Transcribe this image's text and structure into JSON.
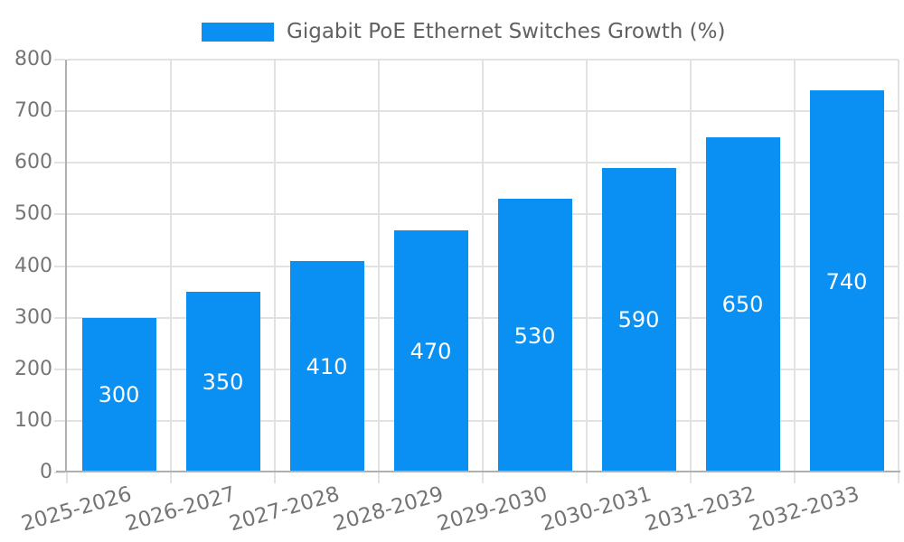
{
  "legend": {
    "label": "Gigabit PoE Ethernet Switches Growth (%)"
  },
  "chart_data": {
    "type": "bar",
    "title": "Gigabit PoE Ethernet Switches Growth (%)",
    "categories": [
      "2025-2026",
      "2026-2027",
      "2027-2028",
      "2028-2029",
      "2029-2030",
      "2030-2031",
      "2031-2032",
      "2032-2033"
    ],
    "values": [
      300,
      350,
      410,
      470,
      530,
      590,
      650,
      740
    ],
    "value_labels": [
      "300",
      "350",
      "410",
      "470",
      "530",
      "590",
      "650",
      "740"
    ],
    "xlabel": "",
    "ylabel": "",
    "ylim": [
      0,
      800
    ],
    "ytick_step": 100,
    "ytick_labels": [
      "0",
      "100",
      "200",
      "300",
      "400",
      "500",
      "600",
      "700",
      "800"
    ],
    "grid": "on",
    "legend_position": "top",
    "bar_color": "#0a90f2",
    "grid_color": "#e2e2e2",
    "axis_color": "#b0b0b0",
    "tick_text_color": "#757575",
    "value_label_color": "#ffffff"
  }
}
